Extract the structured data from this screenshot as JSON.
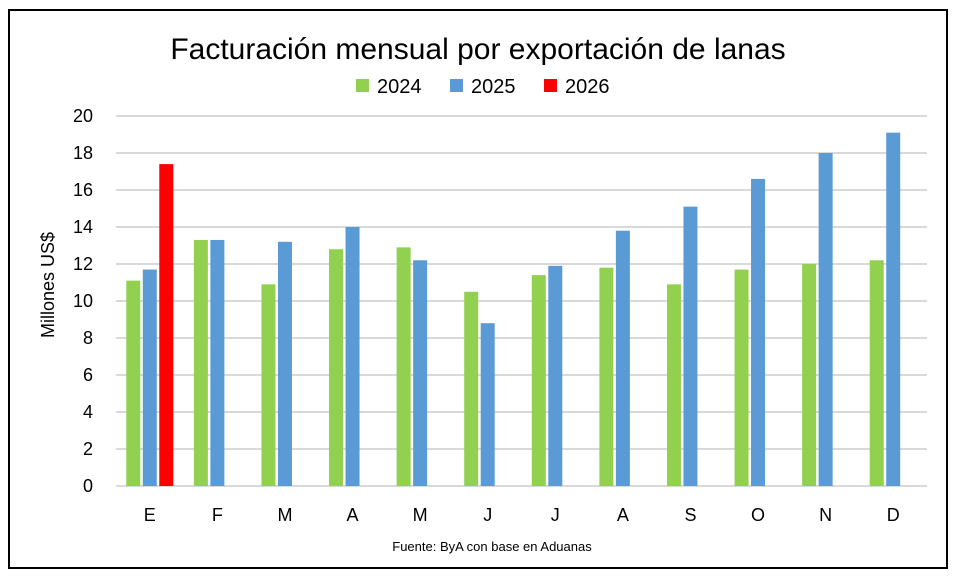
{
  "chart_data": {
    "type": "bar",
    "title": "Facturación mensual por exportación de lanas",
    "xlabel": "",
    "ylabel": "Millones US$",
    "ylim": [
      0,
      20
    ],
    "yticks": [
      0,
      2,
      4,
      6,
      8,
      10,
      12,
      14,
      16,
      18,
      20
    ],
    "grid": true,
    "legend_position": "top-center",
    "categories": [
      "E",
      "F",
      "M",
      "A",
      "M",
      "J",
      "J",
      "A",
      "S",
      "O",
      "N",
      "D"
    ],
    "series": [
      {
        "name": "2024",
        "color": "#92D050",
        "values": [
          11.1,
          13.3,
          10.9,
          12.8,
          12.9,
          10.5,
          11.4,
          11.8,
          10.9,
          11.7,
          12.0,
          12.2
        ]
      },
      {
        "name": "2025",
        "color": "#5B9BD5",
        "values": [
          11.7,
          13.3,
          13.2,
          14.0,
          12.2,
          8.8,
          11.9,
          13.8,
          15.1,
          16.6,
          18.0,
          19.1
        ]
      },
      {
        "name": "2026",
        "color": "#FF0000",
        "values": [
          17.4,
          null,
          null,
          null,
          null,
          null,
          null,
          null,
          null,
          null,
          null,
          null
        ]
      }
    ],
    "source": "Fuente: ByA con base en Aduanas"
  }
}
